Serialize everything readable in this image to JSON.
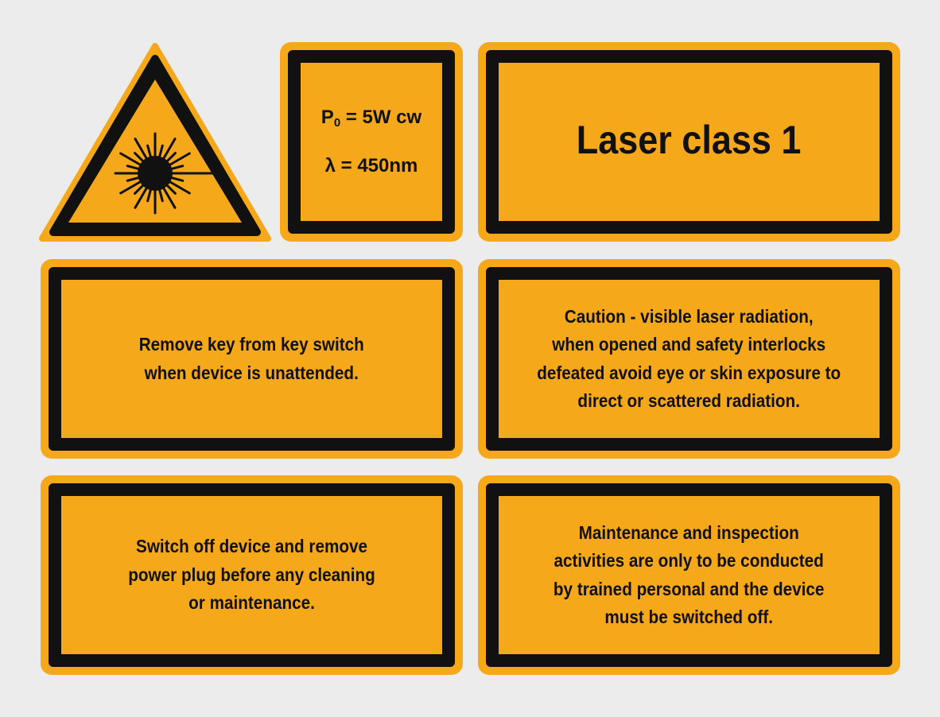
{
  "colors": {
    "sign_yellow": "#f6a81b",
    "border_black": "#111111",
    "background": "#ececec"
  },
  "warning_triangle": {
    "icon": "laser-radiation-icon"
  },
  "spec_sign": {
    "power_symbol": "P",
    "power_subscript": "0",
    "power_value": " = 5W cw",
    "wavelength": "λ = 450nm"
  },
  "class_sign": {
    "text": "Laser class 1"
  },
  "signs": {
    "key_switch": "Remove key from key switch\nwhen device is unattended.",
    "caution": "Caution - visible laser radiation,\nwhen opened and safety interlocks\ndefeated avoid eye or skin exposure to\ndirect or scattered radiation.",
    "switch_off": "Switch off device and remove\npower plug before any cleaning\nor maintenance.",
    "maintenance": "Maintenance and inspection\nactivities are only to be conducted\nby trained personal and the device\nmust be switched off."
  }
}
